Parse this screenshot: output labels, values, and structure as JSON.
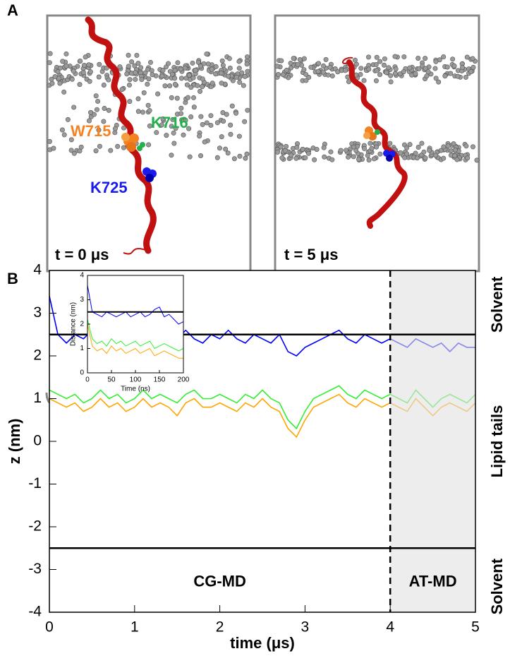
{
  "panel_a": {
    "label": "A",
    "panels": [
      {
        "time_label": "t = 0 μs",
        "residues": [
          {
            "name": "W715",
            "color": "#f58220"
          },
          {
            "name": "K716",
            "color": "#22b14c"
          },
          {
            "name": "K725",
            "color": "#1a1aee"
          }
        ]
      },
      {
        "time_label": "t = 5 μs"
      }
    ]
  },
  "panel_b": {
    "label": "B"
  },
  "chart_data": [
    {
      "type": "line",
      "xlabel": "time (μs)",
      "ylabel": "z (nm)",
      "xlim": [
        0,
        5
      ],
      "ylim": [
        -4,
        4
      ],
      "xticks": [
        0,
        1,
        2,
        3,
        4,
        5
      ],
      "yticks": [
        -4,
        -3,
        -2,
        -1,
        0,
        1,
        2,
        3,
        4
      ],
      "hlines": [
        2.5,
        -2.5
      ],
      "vline": 4,
      "shade": [
        4,
        5
      ],
      "region_labels": [
        "CG-MD",
        "AT-MD"
      ],
      "side_labels": [
        "Solvent",
        "Lipid tails",
        "Solvent"
      ],
      "x": [
        0,
        0.1,
        0.2,
        0.3,
        0.4,
        0.5,
        0.6,
        0.7,
        0.8,
        0.9,
        1,
        1.1,
        1.2,
        1.3,
        1.4,
        1.5,
        1.6,
        1.7,
        1.8,
        1.9,
        2,
        2.1,
        2.2,
        2.3,
        2.4,
        2.5,
        2.6,
        2.7,
        2.8,
        2.9,
        3,
        3.1,
        3.2,
        3.3,
        3.4,
        3.5,
        3.6,
        3.7,
        3.8,
        3.9,
        4,
        4.1,
        4.2,
        4.3,
        4.4,
        4.5,
        4.6,
        4.7,
        4.8,
        4.9,
        5
      ],
      "series": [
        {
          "color": "#0000ff",
          "values": [
            3.4,
            2.5,
            2.3,
            2.5,
            2.4,
            2.6,
            2.3,
            2.5,
            2.4,
            2.5,
            2.3,
            2.6,
            2.4,
            2.5,
            2.3,
            2.4,
            2.6,
            2.4,
            2.3,
            2.5,
            2.4,
            2.6,
            2.4,
            2.3,
            2.5,
            2.4,
            2.3,
            2.5,
            2.1,
            2.0,
            2.2,
            2.3,
            2.4,
            2.5,
            2.6,
            2.4,
            2.3,
            2.5,
            2.4,
            2.3,
            2.4,
            2.3,
            2.2,
            2.4,
            2.3,
            2.2,
            2.3,
            2.1,
            2.3,
            2.2,
            2.2
          ]
        },
        {
          "color": "#33ee33",
          "values": [
            1.2,
            1.1,
            1.0,
            1.1,
            0.9,
            1.0,
            1.2,
            1.0,
            1.1,
            0.9,
            1.0,
            1.2,
            1.0,
            1.1,
            1.0,
            0.9,
            1.1,
            1.2,
            1.0,
            1.0,
            1.1,
            1.0,
            0.9,
            1.1,
            1.0,
            1.2,
            1.0,
            0.9,
            0.5,
            0.3,
            0.7,
            1.0,
            1.1,
            1.2,
            1.3,
            1.1,
            1.0,
            1.2,
            1.1,
            1.0,
            1.1,
            1.0,
            0.9,
            1.2,
            1.0,
            0.8,
            1.0,
            1.1,
            1.0,
            0.9,
            1.1
          ]
        },
        {
          "color": "#ffa500",
          "values": [
            1.0,
            0.9,
            0.8,
            0.9,
            0.7,
            0.8,
            1.0,
            0.8,
            0.9,
            0.7,
            0.8,
            1.0,
            0.8,
            0.9,
            0.8,
            0.6,
            0.9,
            1.0,
            0.8,
            0.8,
            0.9,
            0.8,
            0.7,
            0.9,
            0.8,
            1.0,
            0.8,
            0.7,
            0.3,
            0.1,
            0.5,
            0.8,
            0.9,
            1.0,
            1.1,
            0.9,
            0.8,
            1.0,
            0.9,
            0.8,
            0.9,
            0.8,
            0.7,
            1.0,
            0.8,
            0.6,
            0.8,
            0.9,
            0.8,
            0.7,
            0.9
          ]
        }
      ]
    },
    {
      "type": "line",
      "xlabel": "Time (ns)",
      "ylabel": "Distance (nm)",
      "xlim": [
        0,
        200
      ],
      "ylim": [
        0,
        4
      ],
      "xticks": [
        0,
        50,
        100,
        150,
        200
      ],
      "yticks": [
        0,
        1,
        2,
        3,
        4
      ],
      "hlines": [
        2.5
      ],
      "x": [
        0,
        10,
        20,
        30,
        40,
        50,
        60,
        70,
        80,
        90,
        100,
        110,
        120,
        130,
        140,
        150,
        160,
        170,
        180,
        190,
        200
      ],
      "series": [
        {
          "color": "#0000ff",
          "values": [
            3.6,
            2.5,
            2.4,
            2.3,
            2.5,
            2.4,
            2.3,
            2.4,
            2.5,
            2.3,
            2.4,
            2.5,
            2.3,
            2.4,
            2.6,
            2.7,
            2.3,
            2.4,
            2.2,
            2.0,
            2.1
          ]
        },
        {
          "color": "#33ee33",
          "values": [
            2.2,
            1.4,
            1.2,
            1.3,
            1.1,
            1.4,
            1.2,
            1.3,
            1.1,
            1.2,
            1.3,
            1.1,
            1.2,
            1.3,
            1.0,
            1.1,
            1.2,
            1.1,
            1.0,
            0.9,
            1.0
          ]
        },
        {
          "color": "#ffa500",
          "values": [
            2.0,
            1.1,
            0.9,
            1.0,
            0.8,
            1.1,
            0.9,
            1.0,
            0.8,
            0.9,
            1.0,
            0.8,
            0.9,
            1.0,
            0.7,
            0.8,
            0.9,
            0.8,
            0.7,
            0.6,
            0.6
          ]
        }
      ]
    }
  ]
}
